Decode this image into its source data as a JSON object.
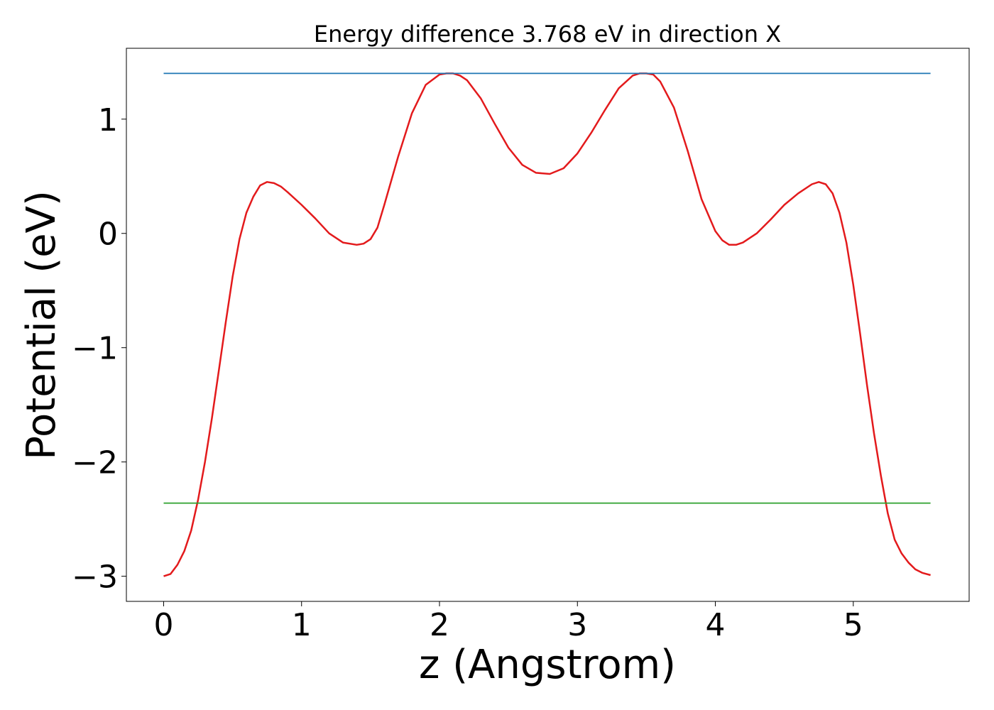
{
  "chart_data": {
    "type": "line",
    "title": "Energy difference 3.768 eV in direction X",
    "xlabel": "z (Angstrom)",
    "ylabel": "Potential (eV)",
    "xlim": [
      -0.27,
      5.84
    ],
    "ylim": [
      -3.22,
      1.62
    ],
    "xticks": [
      0,
      1,
      2,
      3,
      4,
      5
    ],
    "xtick_labels": [
      "0",
      "1",
      "2",
      "3",
      "4",
      "5"
    ],
    "yticks": [
      -3,
      -2,
      -1,
      0,
      1
    ],
    "ytick_labels": [
      "−3",
      "−2",
      "−1",
      "0",
      "1"
    ],
    "grid": false,
    "colors": {
      "potential": "#e31a1c",
      "upper_level": "#1f77b4",
      "lower_level": "#2ca02c"
    },
    "series": [
      {
        "style": "curve",
        "color": "#e31a1c",
        "x": [
          0.0,
          0.05,
          0.1,
          0.15,
          0.2,
          0.25,
          0.3,
          0.35,
          0.4,
          0.45,
          0.5,
          0.55,
          0.6,
          0.65,
          0.7,
          0.75,
          0.8,
          0.85,
          0.9,
          1.0,
          1.1,
          1.2,
          1.3,
          1.4,
          1.45,
          1.5,
          1.55,
          1.6,
          1.7,
          1.8,
          1.9,
          2.0,
          2.05,
          2.1,
          2.15,
          2.2,
          2.3,
          2.4,
          2.5,
          2.6,
          2.7,
          2.8,
          2.9,
          3.0,
          3.1,
          3.2,
          3.3,
          3.4,
          3.45,
          3.5,
          3.55,
          3.6,
          3.7,
          3.8,
          3.9,
          4.0,
          4.05,
          4.1,
          4.15,
          4.2,
          4.3,
          4.4,
          4.5,
          4.6,
          4.7,
          4.75,
          4.8,
          4.85,
          4.9,
          4.95,
          5.0,
          5.05,
          5.1,
          5.15,
          5.2,
          5.25,
          5.3,
          5.35,
          5.4,
          5.45,
          5.5,
          5.56
        ],
        "y": [
          -3.0,
          -2.98,
          -2.9,
          -2.78,
          -2.6,
          -2.33,
          -2.0,
          -1.62,
          -1.2,
          -0.78,
          -0.38,
          -0.05,
          0.18,
          0.32,
          0.42,
          0.45,
          0.44,
          0.41,
          0.36,
          0.25,
          0.13,
          0.0,
          -0.08,
          -0.1,
          -0.09,
          -0.05,
          0.05,
          0.25,
          0.67,
          1.05,
          1.3,
          1.39,
          1.4,
          1.4,
          1.38,
          1.34,
          1.18,
          0.96,
          0.75,
          0.6,
          0.53,
          0.52,
          0.57,
          0.7,
          0.88,
          1.08,
          1.27,
          1.38,
          1.4,
          1.4,
          1.39,
          1.33,
          1.1,
          0.72,
          0.3,
          0.02,
          -0.06,
          -0.1,
          -0.1,
          -0.08,
          0.0,
          0.12,
          0.25,
          0.35,
          0.43,
          0.45,
          0.43,
          0.35,
          0.18,
          -0.08,
          -0.45,
          -0.88,
          -1.33,
          -1.75,
          -2.12,
          -2.45,
          -2.68,
          -2.8,
          -2.88,
          -2.94,
          -2.97,
          -2.99
        ]
      },
      {
        "style": "level",
        "color": "#1f77b4",
        "x": [
          0.0,
          5.56
        ],
        "y": [
          1.4,
          1.4
        ]
      },
      {
        "style": "level",
        "color": "#2ca02c",
        "x": [
          0.0,
          5.56
        ],
        "y": [
          -2.36,
          -2.36
        ]
      }
    ]
  }
}
